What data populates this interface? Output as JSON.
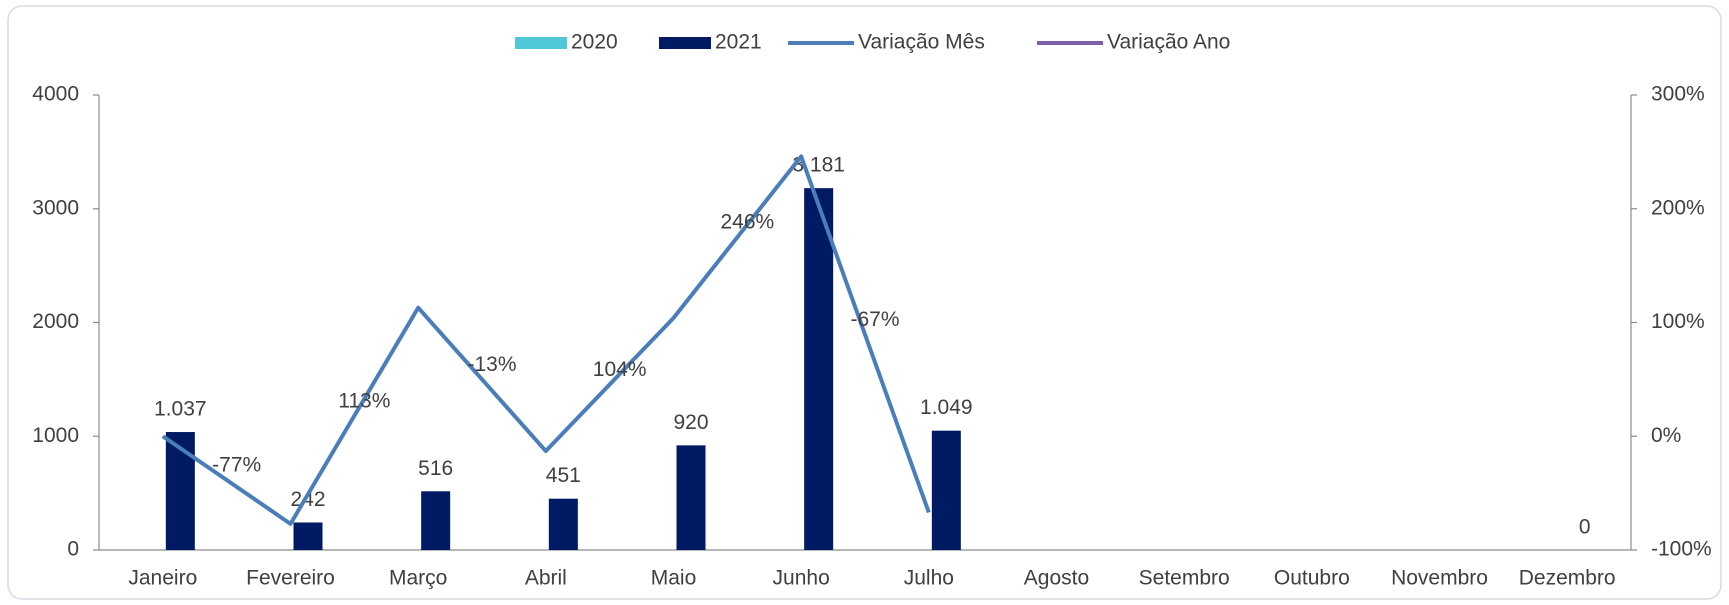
{
  "chart_data": {
    "type": "bar",
    "categories": [
      "Janeiro",
      "Fevereiro",
      "Março",
      "Abril",
      "Maio",
      "Junho",
      "Julho",
      "Agosto",
      "Setembro",
      "Outubro",
      "Novembro",
      "Dezembro"
    ],
    "series": [
      {
        "name": "2020",
        "color": "#4fc7d6",
        "values": [
          null,
          null,
          null,
          null,
          null,
          null,
          null,
          null,
          null,
          null,
          null,
          null
        ]
      },
      {
        "name": "2021",
        "color": "#001a63",
        "values": [
          1037,
          242,
          516,
          451,
          920,
          3181,
          1049,
          null,
          null,
          null,
          null,
          0
        ],
        "value_labels": [
          "1.037",
          "242",
          "516",
          "451",
          "920",
          "3.181",
          "1.049",
          null,
          null,
          null,
          null,
          "0"
        ]
      },
      {
        "name": "Variação Mês",
        "type": "line",
        "axis": "y2",
        "color": "#4a7ebb",
        "values": [
          0,
          -77,
          113,
          -13,
          104,
          246,
          -67,
          null,
          null,
          null,
          null,
          null
        ],
        "value_labels": [
          null,
          "-77%",
          "113%",
          "-13%",
          "104%",
          "246%",
          "-67%",
          null,
          null,
          null,
          null,
          null
        ]
      },
      {
        "name": "Variação Ano",
        "type": "line",
        "axis": "y2",
        "color": "#7f5fa9",
        "values": [
          null,
          null,
          null,
          null,
          null,
          null,
          null,
          null,
          null,
          null,
          null,
          null
        ]
      }
    ],
    "ylim": [
      0,
      4000
    ],
    "yticks": [
      0,
      1000,
      2000,
      3000,
      4000
    ],
    "y2lim": [
      -100,
      300
    ],
    "y2ticks": [
      {
        "value": -100,
        "label": "-100%"
      },
      {
        "value": 0,
        "label": "0%"
      },
      {
        "value": 100,
        "label": "100%"
      },
      {
        "value": 200,
        "label": "200%"
      },
      {
        "value": 300,
        "label": "300%"
      }
    ],
    "legend": "top"
  }
}
